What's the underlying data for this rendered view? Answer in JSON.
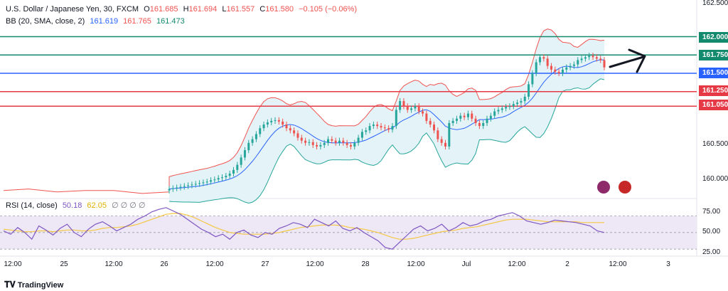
{
  "legend": {
    "symbol": "U.S. Dollar / Japanese Yen, 30, FXCM",
    "open_label": "O",
    "open": "161.685",
    "high_label": "H",
    "high": "161.694",
    "low_label": "L",
    "low": "161.557",
    "close_label": "C",
    "close": "161.580",
    "change": "−0.105 (−0.06%)",
    "bb_label": "BB (20, SMA, close, 2)",
    "bb_basis": "161.619",
    "bb_upper": "161.765",
    "bb_lower": "161.473",
    "rsi_label": "RSI (14, close)",
    "rsi_value": "50.18",
    "rsi_ma": "62.05",
    "rsi_extra": "∅ ∅ ∅ ∅"
  },
  "colors": {
    "up": "#26a69a",
    "down": "#ef5350",
    "blue_line": "#2962ff",
    "teal_line": "#138a6d",
    "red_line": "#e53945",
    "bb_upper": "#f05350",
    "bb_lower": "#26a69a",
    "bb_basis": "#2962ff",
    "bb_fill": "#e4f3f8",
    "rsi_line": "#7e57c2",
    "rsi_ma": "#f5c842",
    "rsi_band": "#ede7f6"
  },
  "chart_data": [
    {
      "type": "candlestick",
      "title": "U.S. Dollar / Japanese Yen, 30, FXCM",
      "ylim": [
        159.8,
        162.5
      ],
      "y_ticks": [
        "162.500",
        "160.500",
        "160.000"
      ],
      "x_ticks": [
        "12:00",
        "25",
        "12:00",
        "26",
        "12:00",
        "27",
        "12:00",
        "28",
        "12:00",
        "Jul",
        "12:00",
        "2",
        "12:00",
        "3"
      ],
      "horizontal_levels": [
        {
          "price": "162.000",
          "value": 162.0,
          "color": "#138a6d"
        },
        {
          "price": "161.750",
          "value": 161.75,
          "color": "#138a6d"
        },
        {
          "price": "161.500",
          "value": 161.5,
          "color": "#2962ff"
        },
        {
          "price": "161.250",
          "value": 161.25,
          "color": "#e53945"
        },
        {
          "price": "161.050",
          "value": 161.05,
          "color": "#e53945"
        }
      ],
      "annotation": "arrow pointing up-right",
      "close_path": [
        159.92,
        159.93,
        159.94,
        159.95,
        159.96,
        159.97,
        159.98,
        159.99,
        160.0,
        160.01,
        160.02,
        160.04,
        160.05,
        160.07,
        160.08,
        160.1,
        160.13,
        160.18,
        160.25,
        160.35,
        160.45,
        160.55,
        160.6,
        160.67,
        160.75,
        160.8,
        160.83,
        160.85,
        160.86,
        160.84,
        160.8,
        160.75,
        160.72,
        160.68,
        160.62,
        160.58,
        160.55,
        160.56,
        160.52,
        160.5,
        160.52,
        160.55,
        160.6,
        160.58,
        160.55,
        160.58,
        160.55,
        160.52,
        160.5,
        160.55,
        160.62,
        160.7,
        160.72,
        160.78,
        160.8,
        160.78,
        160.76,
        160.75,
        160.73,
        160.78,
        161.0,
        161.12,
        161.05,
        161.0,
        161.02,
        161.05,
        160.98,
        160.95,
        160.85,
        160.8,
        160.72,
        160.6,
        160.55,
        160.5,
        160.82,
        160.85,
        160.88,
        160.92,
        160.9,
        160.95,
        160.88,
        160.82,
        160.78,
        160.82,
        160.88,
        160.92,
        160.98,
        161.0,
        161.02,
        161.04,
        161.05,
        161.08,
        161.1,
        161.12,
        161.18,
        161.35,
        161.5,
        161.65,
        161.72,
        161.7,
        161.6,
        161.55,
        161.52,
        161.5,
        161.55,
        161.58,
        161.6,
        161.62,
        161.68,
        161.7,
        161.72,
        161.74,
        161.72,
        161.7,
        161.68,
        161.58
      ]
    },
    {
      "type": "line",
      "title": "RSI (14, close)",
      "ylim": [
        25,
        85
      ],
      "y_ticks": [
        "75.00",
        "50.00",
        "25.00"
      ],
      "band": [
        30,
        70
      ],
      "series": [
        {
          "name": "RSI",
          "values": [
            52,
            48,
            56,
            50,
            42,
            58,
            53,
            47,
            55,
            60,
            50,
            45,
            54,
            60,
            63,
            58,
            52,
            56,
            60,
            66,
            70,
            75,
            78,
            80,
            76,
            72,
            66,
            60,
            54,
            50,
            45,
            48,
            42,
            50,
            53,
            47,
            44,
            50,
            48,
            55,
            58,
            62,
            60,
            56,
            66,
            62,
            58,
            64,
            55,
            52,
            56,
            50,
            45,
            40,
            32,
            30,
            38,
            46,
            54,
            58,
            52,
            55,
            60,
            52,
            56,
            62,
            58,
            60,
            64,
            66,
            70,
            72,
            74,
            70,
            64,
            62,
            60,
            62,
            65,
            64,
            63,
            62,
            60,
            58,
            52,
            50
          ]
        },
        {
          "name": "RSI MA",
          "values": [
            54,
            53,
            52,
            51,
            51,
            52,
            52,
            51,
            52,
            53,
            53,
            52,
            52,
            53,
            55,
            56,
            56,
            57,
            58,
            60,
            63,
            66,
            69,
            72,
            73,
            73,
            71,
            68,
            64,
            60,
            56,
            53,
            50,
            49,
            48,
            48,
            48,
            48,
            49,
            50,
            52,
            54,
            56,
            57,
            58,
            59,
            59,
            59,
            58,
            56,
            55,
            54,
            52,
            50,
            47,
            44,
            42,
            42,
            43,
            45,
            47,
            49,
            51,
            52,
            53,
            55,
            56,
            57,
            59,
            61,
            63,
            65,
            66,
            66,
            66,
            65,
            64,
            63,
            63,
            63,
            63,
            63,
            62,
            62,
            62,
            62
          ]
        }
      ]
    }
  ],
  "brand": "TradingView"
}
